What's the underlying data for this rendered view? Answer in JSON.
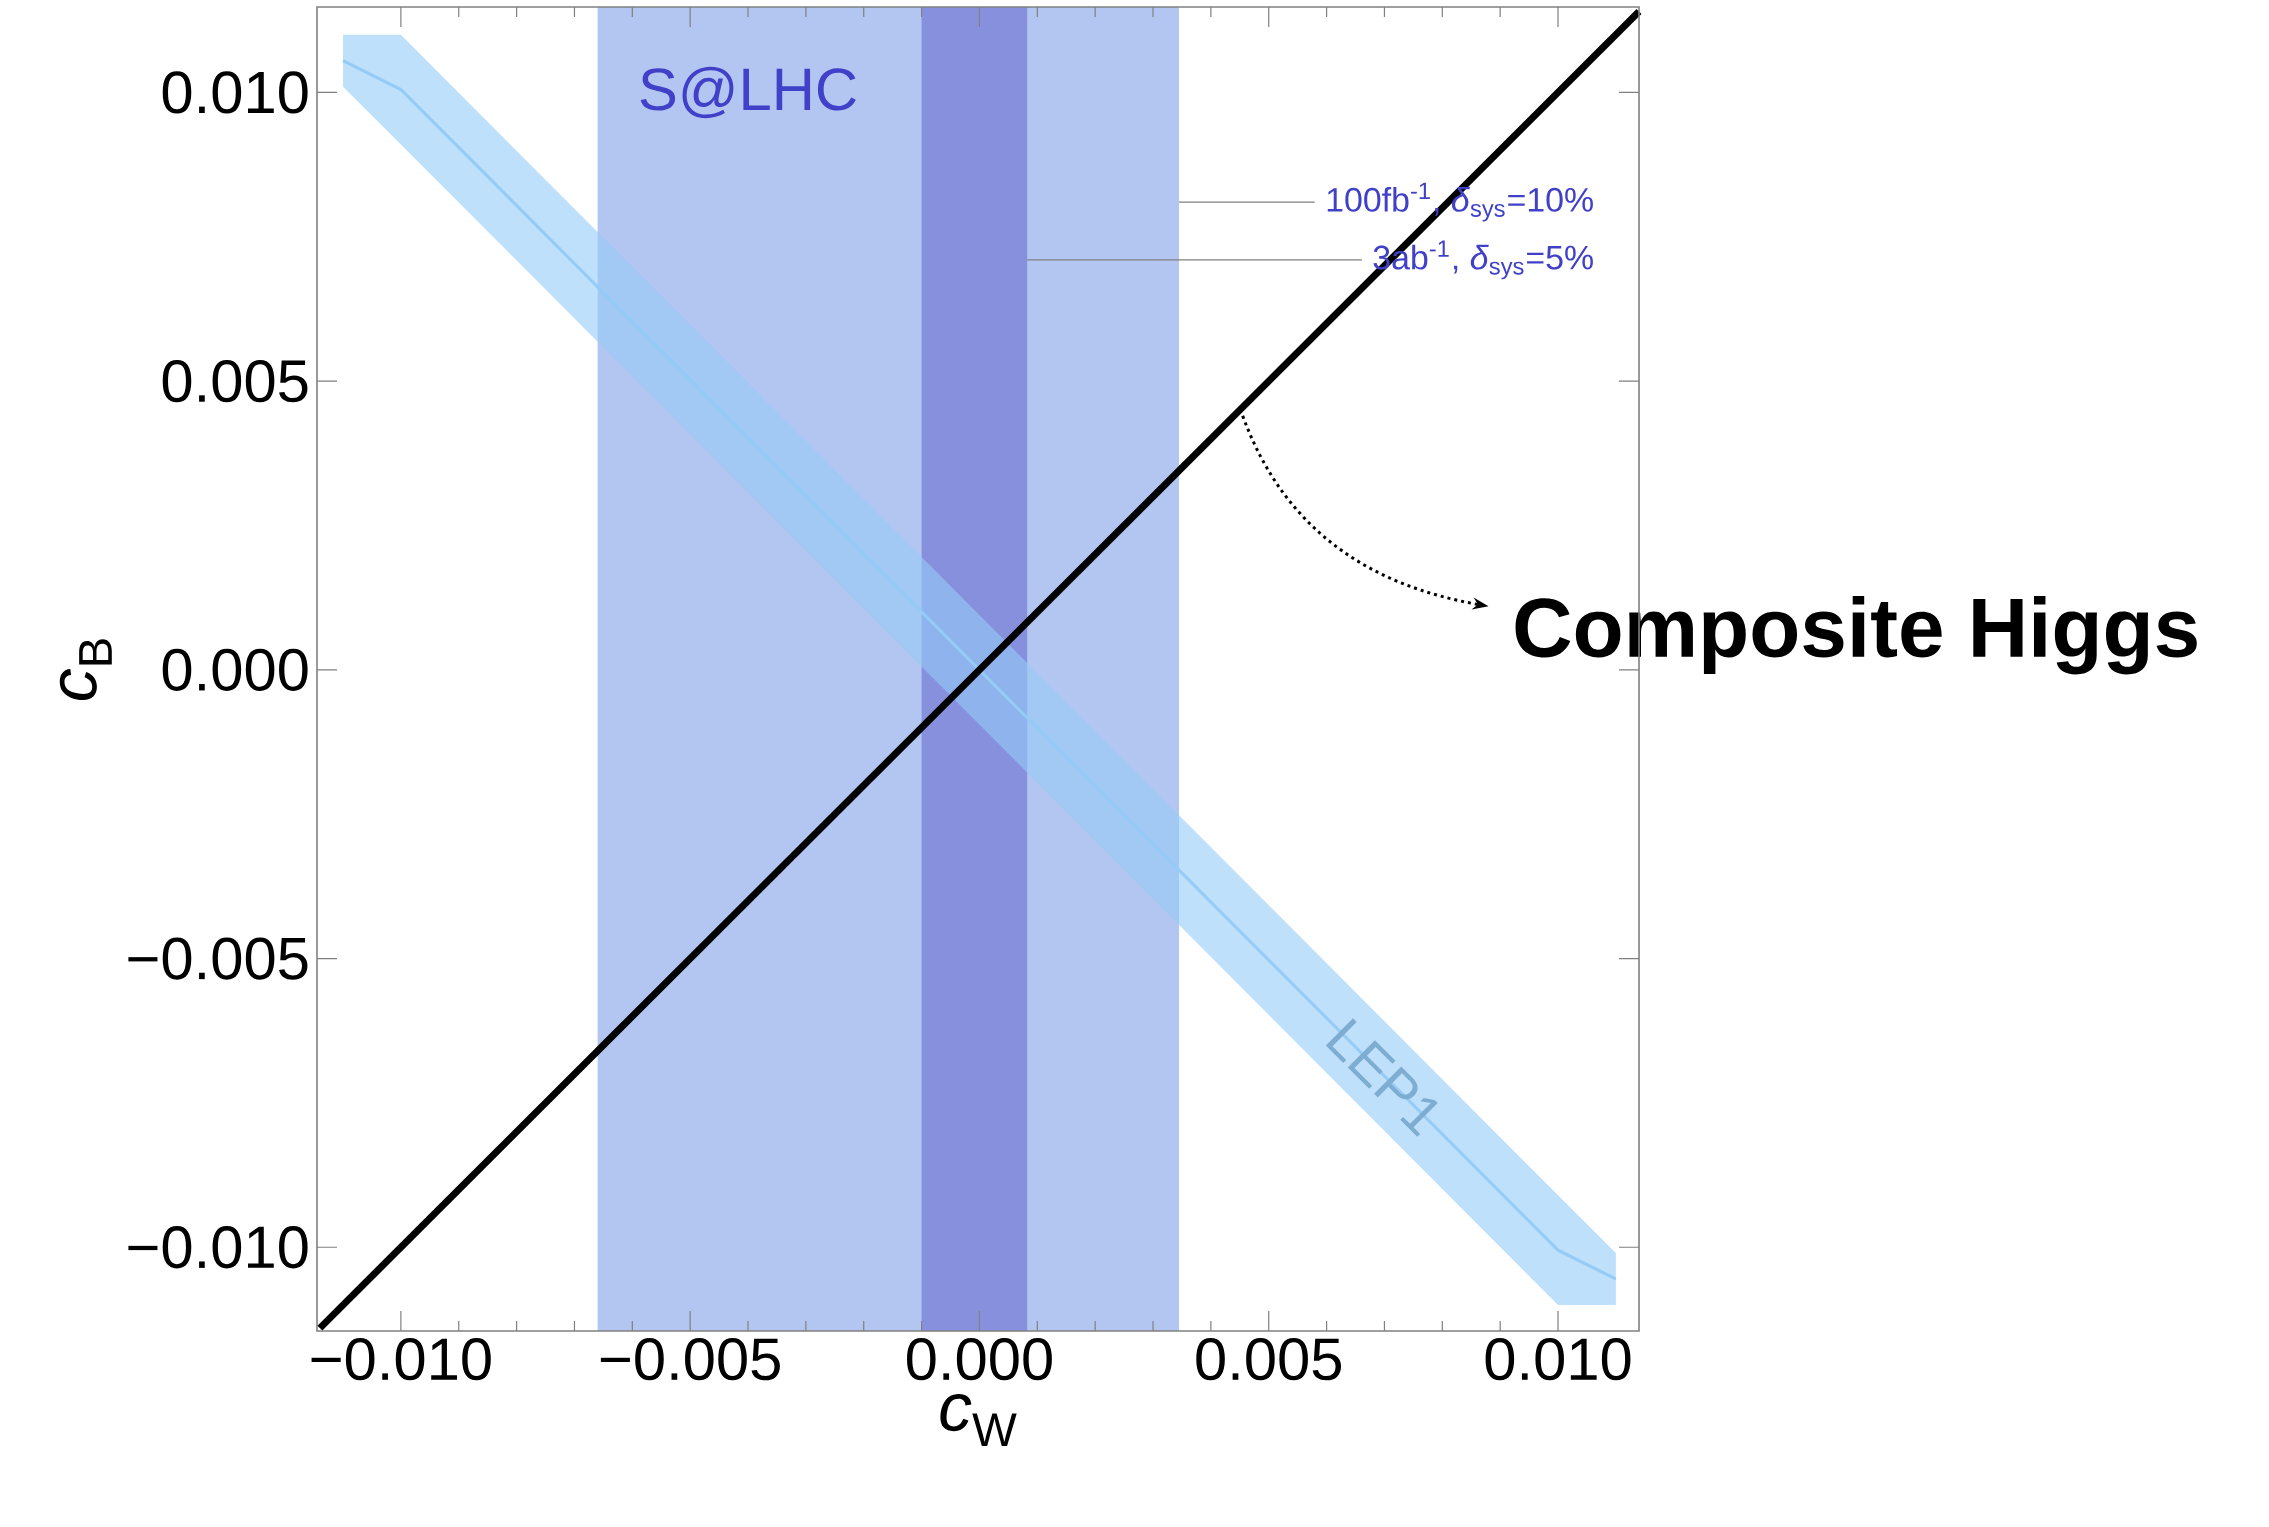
{
  "chart_data": {
    "type": "line",
    "xlabel": "*c*$_{W}$",
    "ylabel": "*c*$_{B}$",
    "xlim": [
      -0.01145,
      0.0114
    ],
    "ylim": [
      -0.01145,
      0.01148
    ],
    "xticks": [
      {
        "value": -0.01,
        "label": "−0.010"
      },
      {
        "value": -0.005,
        "label": "−0.005"
      },
      {
        "value": 0,
        "label": "0.000"
      },
      {
        "value": 0.005,
        "label": "0.005"
      },
      {
        "value": 0.01,
        "label": "0.010"
      }
    ],
    "yticks": [
      {
        "value": -0.01,
        "label": "−0.010"
      },
      {
        "value": -0.005,
        "label": "−0.005"
      },
      {
        "value": 0,
        "label": "0.000"
      },
      {
        "value": 0.005,
        "label": "0.005"
      },
      {
        "value": 0.01,
        "label": "0.010"
      }
    ],
    "bands": [
      {
        "axis": "x",
        "from": -0.0066,
        "to": 0.00345,
        "label": "100fb$^{-1}$, *δ*$_{sys}$=10%",
        "color": "#b3c5f1"
      },
      {
        "axis": "x",
        "from": -0.001,
        "to": 0.000825,
        "label": "3ab$^{-1}$, *δ*$_{sys}$=5%",
        "color": "#8790dc"
      }
    ],
    "series": [
      {
        "name": "LEP1",
        "type": "line",
        "color": "#94cbf7",
        "x": [
          -0.011,
          -0.01,
          0.01,
          0.011
        ],
        "values": [
          0.01055,
          0.01005,
          -0.01005,
          -0.01055
        ],
        "lower": [
          0.0101,
          0.0091,
          -0.011,
          -0.011
        ],
        "upper": [
          0.011,
          0.011,
          -0.0091,
          -0.0101
        ]
      },
      {
        "type": "line",
        "color": "#000000",
        "x": [
          -0.0114,
          0.0114
        ],
        "values": [
          -0.0114,
          0.0114
        ]
      }
    ],
    "annotations": [
      "S@LHC",
      "Composite Higgs"
    ]
  }
}
